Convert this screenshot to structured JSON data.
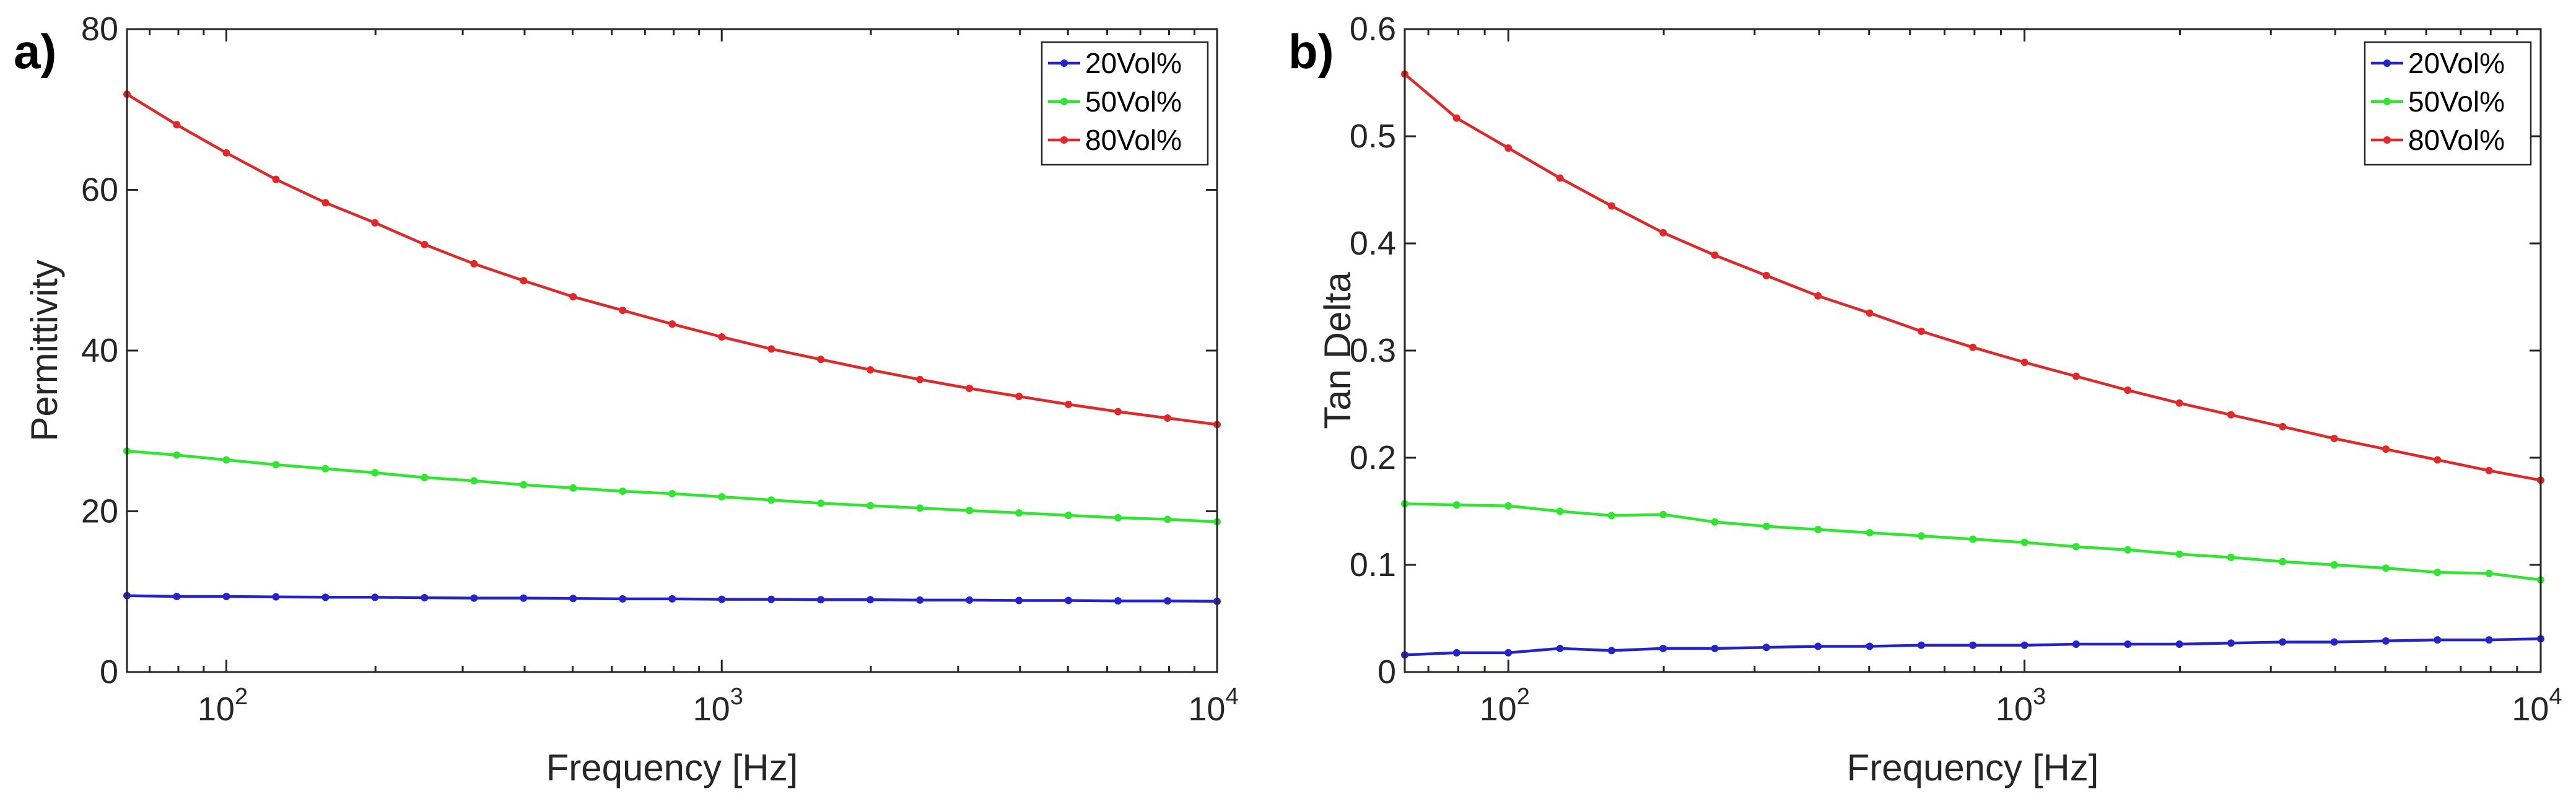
{
  "chart_data": [
    {
      "type": "line",
      "panel_label": "a)",
      "xlabel": "Frequency [Hz]",
      "ylabel": "Permittivity",
      "xscale": "log",
      "xlim": [
        63,
        10000
      ],
      "ylim": [
        0,
        80
      ],
      "yticks": [
        0,
        20,
        40,
        60,
        80
      ],
      "ytick_labels": [
        "0",
        "20",
        "40",
        "60",
        "80"
      ],
      "xticks": [
        100,
        1000,
        10000
      ],
      "xtick_labels": [
        {
          "base": "10",
          "exp": "2"
        },
        {
          "base": "10",
          "exp": "3"
        },
        {
          "base": "10",
          "exp": "4"
        }
      ],
      "legend_position": "top-right",
      "x": [
        63,
        79.4,
        100,
        125.9,
        158.5,
        199.5,
        251.2,
        316.2,
        398.1,
        501.2,
        631,
        794.3,
        1000,
        1258.9,
        1584.9,
        1995.3,
        2511.9,
        3162.3,
        3981.1,
        5011.9,
        6309.6,
        7943.3,
        10000
      ],
      "series": [
        {
          "name": "20Vol%",
          "color": "#2323c8",
          "values": [
            9.5,
            9.4,
            9.4,
            9.35,
            9.3,
            9.3,
            9.25,
            9.2,
            9.2,
            9.15,
            9.1,
            9.1,
            9.05,
            9.05,
            9.0,
            9.0,
            8.95,
            8.95,
            8.9,
            8.9,
            8.85,
            8.85,
            8.8
          ]
        },
        {
          "name": "50Vol%",
          "color": "#2ee62e",
          "values": [
            27.5,
            27.0,
            26.4,
            25.8,
            25.3,
            24.8,
            24.2,
            23.8,
            23.3,
            22.9,
            22.5,
            22.2,
            21.8,
            21.4,
            21.0,
            20.7,
            20.4,
            20.1,
            19.8,
            19.5,
            19.2,
            19.0,
            18.7
          ]
        },
        {
          "name": "80Vol%",
          "color": "#e02828",
          "values": [
            71.9,
            68.1,
            64.6,
            61.3,
            58.4,
            55.9,
            53.2,
            50.8,
            48.7,
            46.7,
            45.0,
            43.3,
            41.7,
            40.2,
            38.9,
            37.6,
            36.4,
            35.3,
            34.3,
            33.3,
            32.4,
            31.6,
            30.8
          ]
        }
      ]
    },
    {
      "type": "line",
      "panel_label": "b)",
      "xlabel": "Frequency [Hz]",
      "ylabel": "Tan Delta",
      "xscale": "log",
      "xlim": [
        63,
        10000
      ],
      "ylim": [
        0,
        0.6
      ],
      "yticks": [
        0,
        0.1,
        0.2,
        0.3,
        0.4,
        0.5,
        0.6
      ],
      "ytick_labels": [
        "0",
        "0.1",
        "0.2",
        "0.3",
        "0.4",
        "0.5",
        "0.6"
      ],
      "xticks": [
        100,
        1000,
        10000
      ],
      "xtick_labels": [
        {
          "base": "10",
          "exp": "2"
        },
        {
          "base": "10",
          "exp": "3"
        },
        {
          "base": "10",
          "exp": "4"
        }
      ],
      "legend_position": "top-right",
      "x": [
        63,
        79.4,
        100,
        125.9,
        158.5,
        199.5,
        251.2,
        316.2,
        398.1,
        501.2,
        631,
        794.3,
        1000,
        1258.9,
        1584.9,
        1995.3,
        2511.9,
        3162.3,
        3981.1,
        5011.9,
        6309.6,
        7943.3,
        10000
      ],
      "series": [
        {
          "name": "20Vol%",
          "color": "#2323c8",
          "values": [
            0.016,
            0.018,
            0.018,
            0.022,
            0.02,
            0.022,
            0.022,
            0.023,
            0.024,
            0.024,
            0.025,
            0.025,
            0.025,
            0.026,
            0.026,
            0.026,
            0.027,
            0.028,
            0.028,
            0.029,
            0.03,
            0.03,
            0.031
          ]
        },
        {
          "name": "50Vol%",
          "color": "#2ee62e",
          "values": [
            0.157,
            0.156,
            0.155,
            0.15,
            0.146,
            0.147,
            0.14,
            0.136,
            0.133,
            0.13,
            0.127,
            0.124,
            0.121,
            0.117,
            0.114,
            0.11,
            0.107,
            0.103,
            0.1,
            0.097,
            0.093,
            0.092,
            0.086
          ]
        },
        {
          "name": "80Vol%",
          "color": "#e02828",
          "values": [
            0.558,
            0.517,
            0.489,
            0.461,
            0.435,
            0.41,
            0.389,
            0.37,
            0.351,
            0.335,
            0.318,
            0.303,
            0.289,
            0.276,
            0.263,
            0.251,
            0.24,
            0.229,
            0.218,
            0.208,
            0.198,
            0.188,
            0.179
          ]
        }
      ]
    }
  ]
}
